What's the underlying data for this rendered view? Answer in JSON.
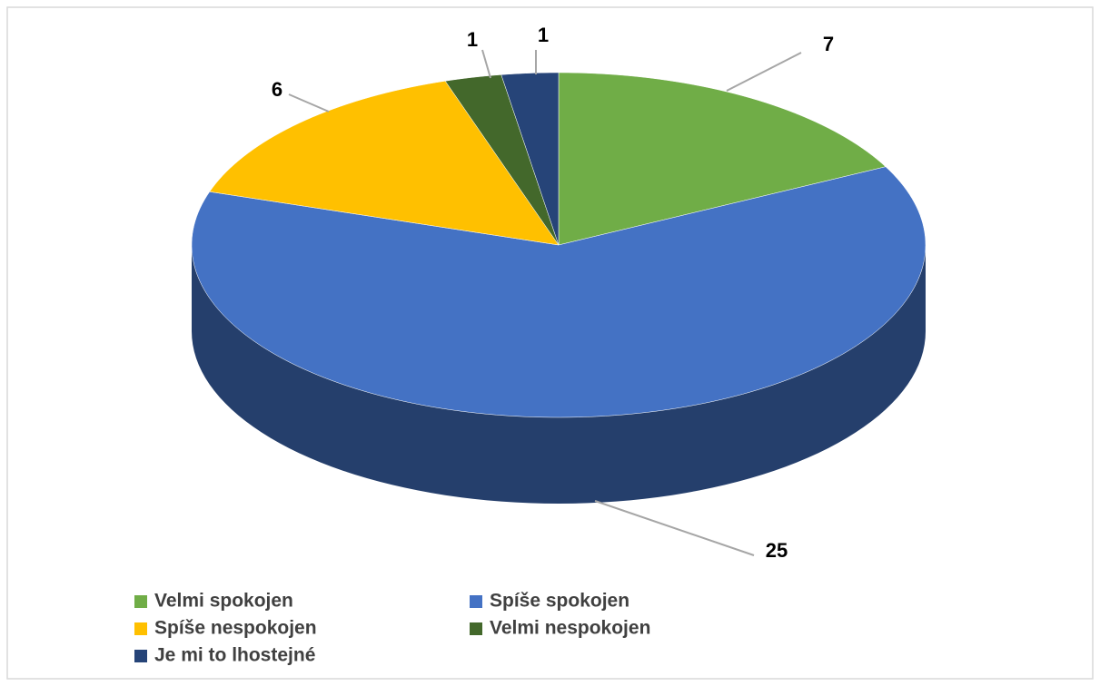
{
  "chart_data": {
    "type": "pie",
    "categories": [
      "Velmi spokojen",
      "Spíše spokojen",
      "Spíše nespokojen",
      "Velmi nespokojen",
      "Je mi to lhostejné"
    ],
    "values": [
      7,
      25,
      6,
      1,
      1
    ],
    "colors": [
      "#70ad47",
      "#4472c4",
      "#ffc000",
      "#43682b",
      "#264478"
    ],
    "legend": "bottom"
  }
}
